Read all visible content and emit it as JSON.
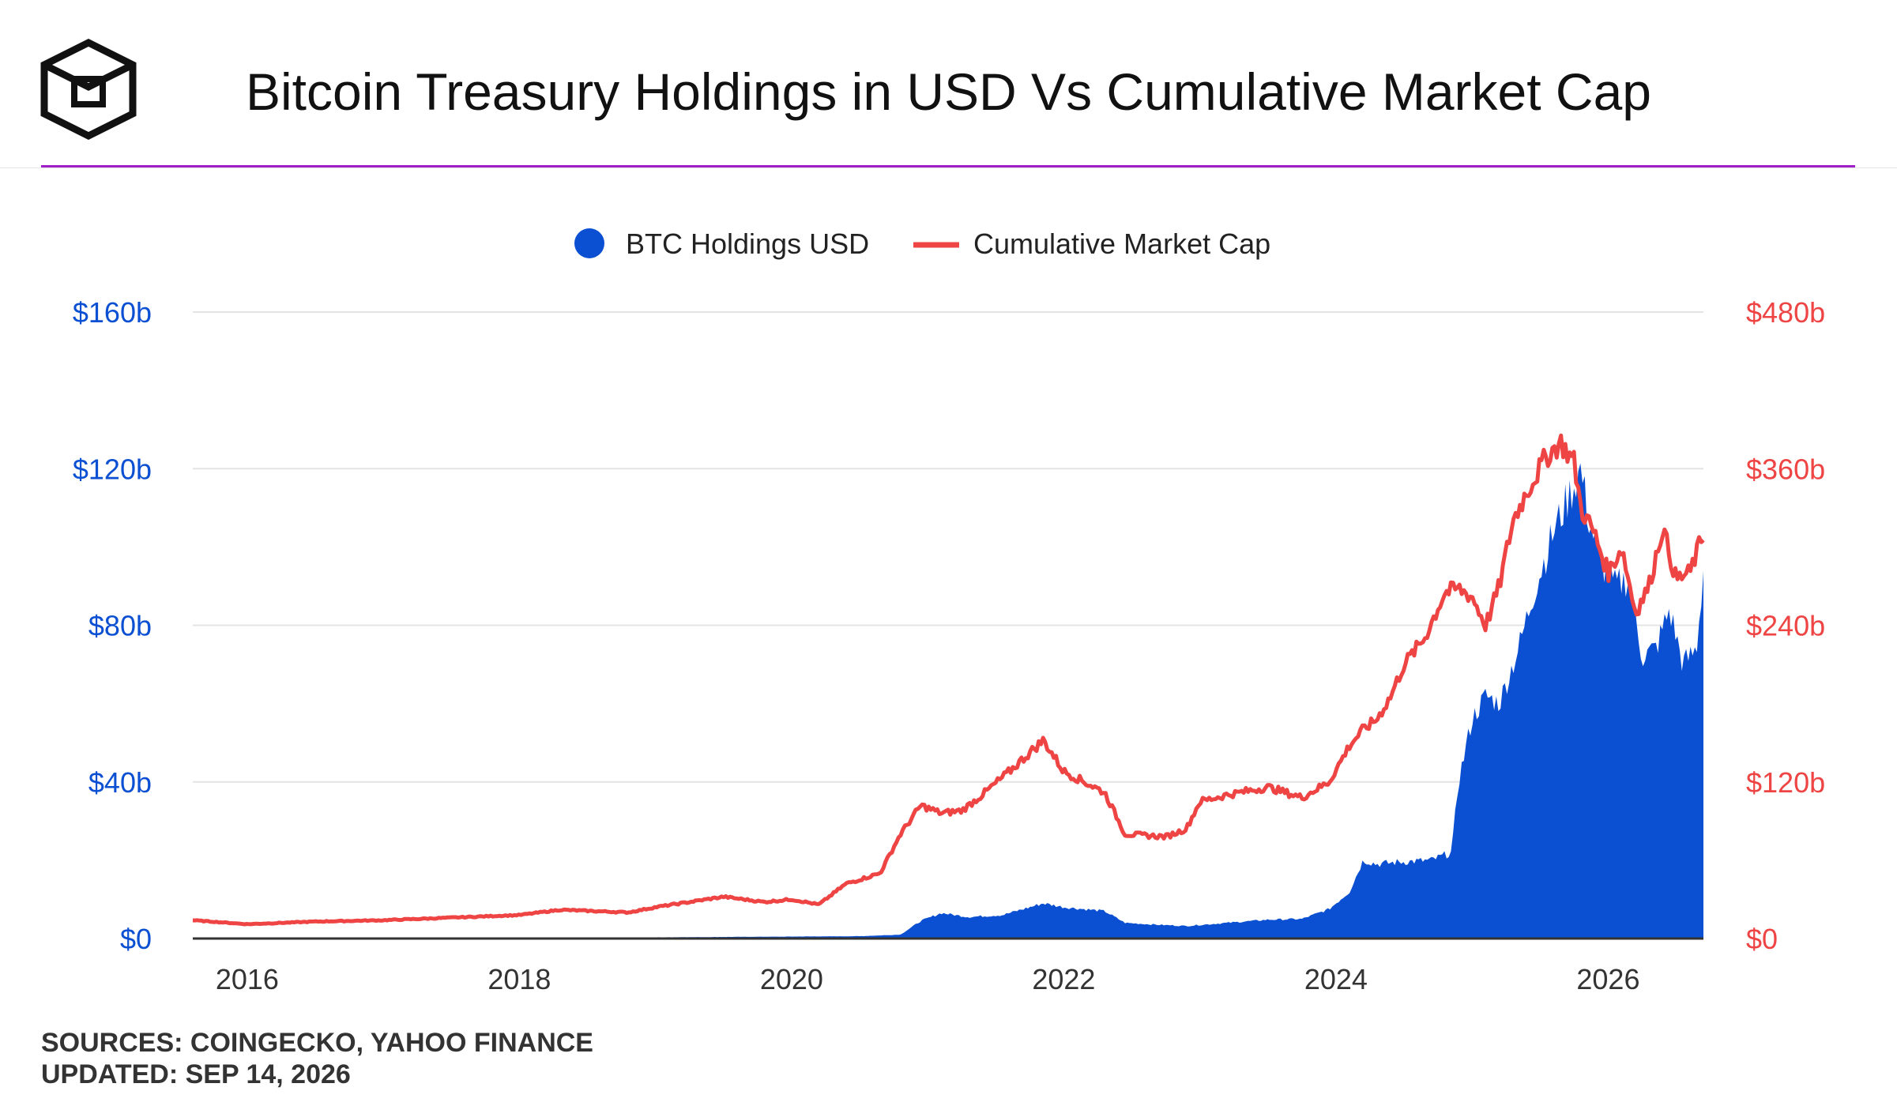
{
  "header": {
    "title": "Bitcoin Treasury Holdings in USD Vs Cumulative Market Cap"
  },
  "footer": {
    "sources": "SOURCES: COINGECKO, YAHOO FINANCE",
    "updated": "UPDATED: SEP 14, 2026"
  },
  "colors": {
    "btc_holdings": "#0b50d2",
    "market_cap": "#ef4444",
    "accent_line": "#a020c8",
    "gridline": "#e4e4e4"
  },
  "chart_data": {
    "type": "area",
    "title": "Bitcoin Treasury Holdings in USD Vs Cumulative Market Cap",
    "legend": {
      "placement": "top-center",
      "entries": [
        "BTC Holdings USD",
        "Cumulative Market Cap"
      ]
    },
    "grid": true,
    "x_axis": {
      "type": "time",
      "range": [
        2015.6,
        2026.7
      ],
      "ticks": [
        2016,
        2018,
        2020,
        2022,
        2024,
        2026
      ],
      "tick_labels": [
        "2016",
        "2018",
        "2020",
        "2022",
        "2024",
        "2026"
      ]
    },
    "y_left": {
      "range": [
        0,
        160
      ],
      "unit": "billion USD",
      "ticks": [
        0,
        40,
        80,
        120,
        160
      ],
      "tick_labels": [
        "$0",
        "$40b",
        "$80b",
        "$120b",
        "$160b"
      ]
    },
    "y_right": {
      "range": [
        0,
        480
      ],
      "unit": "billion USD",
      "ticks": [
        0,
        120,
        240,
        360,
        480
      ],
      "tick_labels": [
        "$0",
        "$120b",
        "$240b",
        "$360b",
        "$480b"
      ]
    },
    "series": [
      {
        "name": "BTC Holdings USD",
        "type": "area",
        "axis": "left",
        "x": [
          2015.6,
          2017.0,
          2018.0,
          2019.0,
          2020.0,
          2020.5,
          2020.8,
          2020.95,
          2021.1,
          2021.3,
          2021.55,
          2021.85,
          2022.0,
          2022.3,
          2022.45,
          2022.7,
          2022.9,
          2023.2,
          2023.5,
          2023.75,
          2023.95,
          2024.1,
          2024.2,
          2024.3,
          2024.45,
          2024.7,
          2024.85,
          2024.9,
          2025.0,
          2025.1,
          2025.2,
          2025.35,
          2025.45,
          2025.6,
          2025.7,
          2025.8,
          2025.85,
          2025.95,
          2026.05,
          2026.15,
          2026.25,
          2026.35,
          2026.45,
          2026.55,
          2026.65,
          2026.7
        ],
        "values": [
          0,
          0.1,
          0.2,
          0.3,
          0.5,
          0.6,
          1.0,
          4.5,
          6.5,
          5.5,
          6.0,
          9.0,
          8.0,
          7.0,
          4.0,
          3.5,
          3.2,
          4.0,
          4.8,
          5.0,
          7.5,
          12.0,
          20.0,
          19.0,
          19.5,
          20.0,
          22.0,
          40.0,
          56.0,
          62.0,
          60.0,
          75.0,
          88.0,
          104.0,
          112.0,
          120.0,
          108.0,
          96.0,
          90.0,
          92.0,
          72.0,
          74.0,
          84.0,
          70.0,
          74.0,
          94.0
        ]
      },
      {
        "name": "Cumulative Market Cap",
        "type": "line",
        "axis": "right",
        "x": [
          2015.6,
          2016.0,
          2016.5,
          2017.0,
          2017.5,
          2018.0,
          2018.3,
          2018.8,
          2019.0,
          2019.5,
          2019.8,
          2020.0,
          2020.2,
          2020.4,
          2020.65,
          2020.8,
          2020.95,
          2021.1,
          2021.25,
          2021.4,
          2021.6,
          2021.85,
          2022.0,
          2022.3,
          2022.45,
          2022.75,
          2022.9,
          2023.0,
          2023.2,
          2023.5,
          2023.75,
          2023.95,
          2024.1,
          2024.2,
          2024.3,
          2024.4,
          2024.5,
          2024.65,
          2024.8,
          2024.9,
          2025.0,
          2025.1,
          2025.2,
          2025.3,
          2025.4,
          2025.55,
          2025.65,
          2025.75,
          2025.8,
          2025.9,
          2026.0,
          2026.1,
          2026.2,
          2026.3,
          2026.4,
          2026.5,
          2026.6,
          2026.7
        ],
        "values": [
          14,
          11,
          13,
          14,
          16,
          18,
          22,
          20,
          24,
          32,
          28,
          30,
          26,
          42,
          50,
          80,
          102,
          96,
          98,
          110,
          128,
          152,
          128,
          112,
          80,
          78,
          84,
          105,
          110,
          116,
          108,
          120,
          148,
          160,
          168,
          185,
          210,
          230,
          265,
          268,
          262,
          240,
          270,
          320,
          342,
          370,
          380,
          365,
          330,
          310,
          280,
          300,
          250,
          270,
          315,
          275,
          280,
          310
        ]
      }
    ]
  }
}
